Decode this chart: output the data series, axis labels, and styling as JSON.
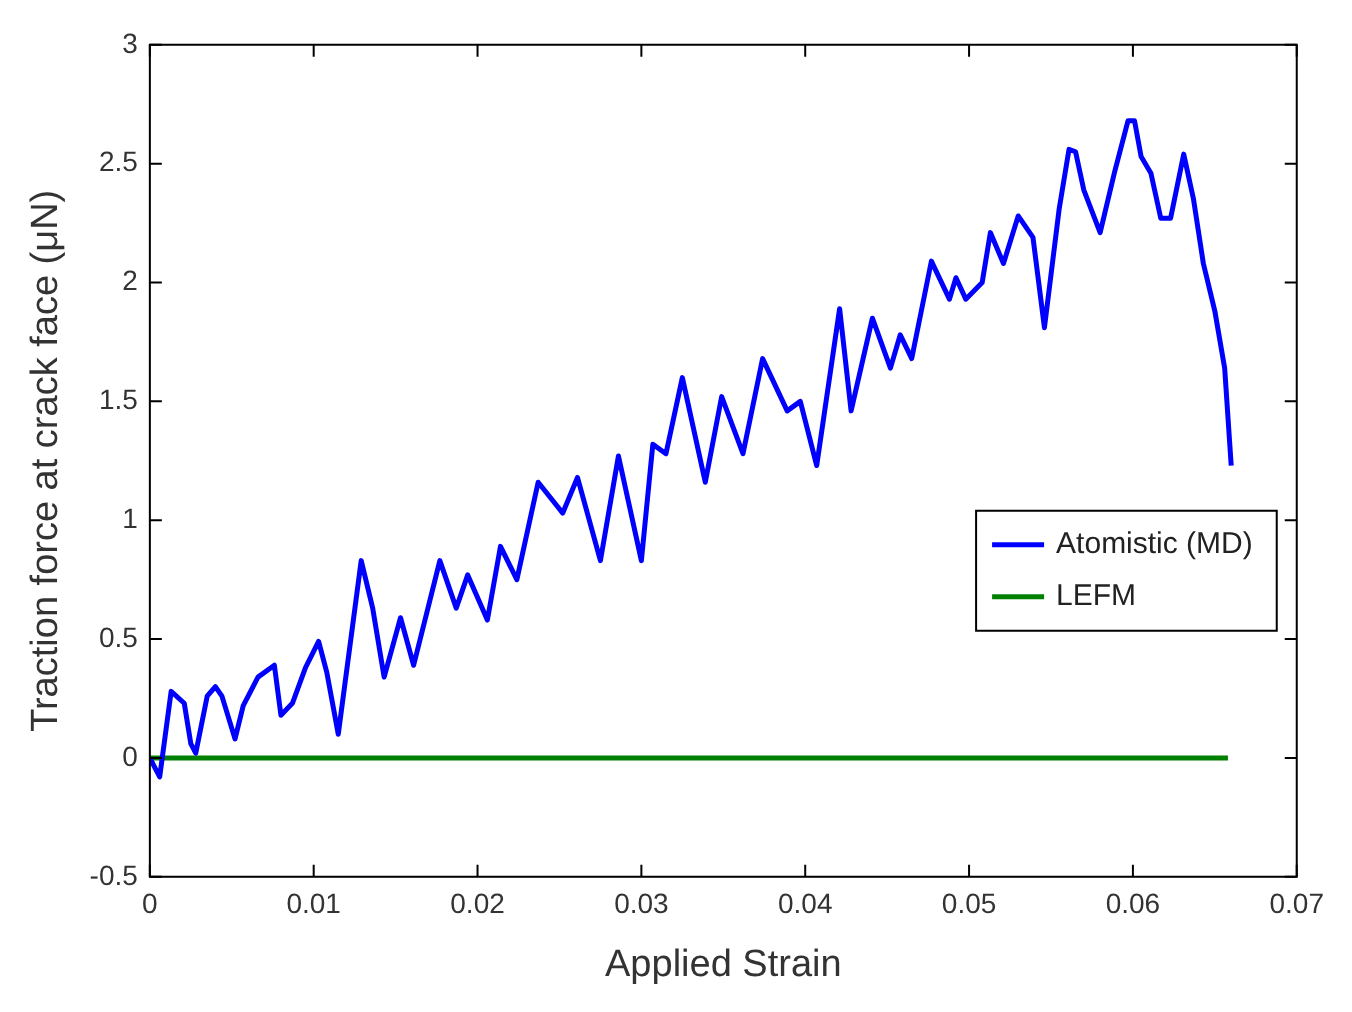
{
  "chart_data": {
    "type": "line",
    "xlabel": "Applied Strain",
    "ylabel": "Traction force at crack face (μN)",
    "xlim": [
      0,
      0.07
    ],
    "xticks": [
      0,
      0.01,
      0.02,
      0.03,
      0.04,
      0.05,
      0.06,
      0.07
    ],
    "ylim": [
      -0.5,
      3
    ],
    "yticks": [
      -0.5,
      0,
      0.5,
      1,
      1.5,
      2,
      2.5,
      3
    ],
    "grid": false,
    "legend": "right",
    "line_style": "solid",
    "marker": "none",
    "series": [
      {
        "name": "Atomistic (MD)",
        "color": "#0000ff",
        "x": [
          0,
          0.0006,
          0.0013,
          0.0021,
          0.0025,
          0.0028,
          0.0035,
          0.004,
          0.0044,
          0.0052,
          0.0057,
          0.0066,
          0.0076,
          0.008,
          0.0087,
          0.0095,
          0.0103,
          0.0108,
          0.0115,
          0.0129,
          0.0136,
          0.0143,
          0.0153,
          0.0161,
          0.0177,
          0.0187,
          0.0194,
          0.0206,
          0.0214,
          0.0224,
          0.0237,
          0.0252,
          0.0261,
          0.0275,
          0.0286,
          0.03,
          0.0307,
          0.0315,
          0.0325,
          0.0339,
          0.0349,
          0.0362,
          0.0374,
          0.0389,
          0.0397,
          0.0407,
          0.0421,
          0.0428,
          0.0441,
          0.0452,
          0.0458,
          0.0465,
          0.0477,
          0.0488,
          0.0492,
          0.0498,
          0.0508,
          0.0513,
          0.0521,
          0.053,
          0.0539,
          0.0546,
          0.0555,
          0.0561,
          0.0565,
          0.057,
          0.058,
          0.0589,
          0.0597,
          0.0601,
          0.0605,
          0.0611,
          0.0617,
          0.0623,
          0.0631,
          0.0637,
          0.0643,
          0.065,
          0.0656,
          0.066
        ],
        "values": [
          0,
          -0.08,
          0.28,
          0.23,
          0.06,
          0.02,
          0.26,
          0.3,
          0.26,
          0.08,
          0.22,
          0.34,
          0.39,
          0.18,
          0.23,
          0.38,
          0.49,
          0.36,
          0.1,
          0.83,
          0.63,
          0.34,
          0.59,
          0.39,
          0.83,
          0.63,
          0.77,
          0.58,
          0.89,
          0.75,
          1.16,
          1.03,
          1.18,
          0.83,
          1.27,
          0.83,
          1.32,
          1.28,
          1.6,
          1.16,
          1.52,
          1.28,
          1.68,
          1.46,
          1.5,
          1.23,
          1.89,
          1.46,
          1.85,
          1.64,
          1.78,
          1.68,
          2.09,
          1.93,
          2.02,
          1.93,
          2.0,
          2.21,
          2.08,
          2.28,
          2.19,
          1.81,
          2.31,
          2.56,
          2.55,
          2.39,
          2.21,
          2.47,
          2.68,
          2.68,
          2.53,
          2.46,
          2.27,
          2.27,
          2.54,
          2.35,
          2.08,
          1.88,
          1.64,
          1.23
        ]
      },
      {
        "name": "LEFM",
        "color": "#008000",
        "x": [
          0,
          0.0658
        ],
        "values": [
          0,
          0
        ]
      }
    ]
  }
}
